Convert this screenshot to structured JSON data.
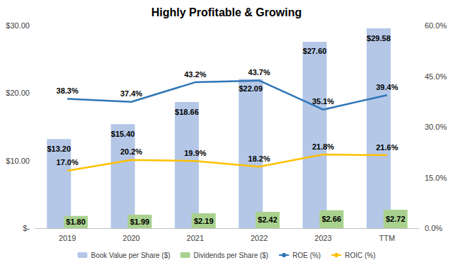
{
  "chart_data": {
    "type": "bar",
    "title": "Highly Profitable & Growing",
    "categories": [
      "2019",
      "2020",
      "2021",
      "2022",
      "2023",
      "TTM"
    ],
    "series": [
      {
        "name": "Book Value per Share ($)",
        "type": "bar",
        "color": "#b4c7e7",
        "values": [
          13.2,
          15.4,
          18.66,
          22.09,
          27.6,
          29.58
        ],
        "value_labels": [
          "$13.20",
          "$15.40",
          "$18.66",
          "$22.09",
          "$27.60",
          "$29.58"
        ]
      },
      {
        "name": "Dividends per Share ($)",
        "type": "bar",
        "color": "#a9d18e",
        "values": [
          1.8,
          1.99,
          2.19,
          2.42,
          2.66,
          2.72
        ],
        "value_labels": [
          "$1.80",
          "$1.99",
          "$2.19",
          "$2.42",
          "$2.66",
          "$2.72"
        ]
      },
      {
        "name": "ROE (%)",
        "type": "line",
        "axis": "y2",
        "color": "#2e75b6",
        "marker": "none",
        "line_style": "solid",
        "values": [
          38.3,
          37.4,
          43.2,
          43.7,
          35.1,
          39.4
        ],
        "value_labels": [
          "38.3%",
          "37.4%",
          "43.2%",
          "43.7%",
          "35.1%",
          "39.4%"
        ]
      },
      {
        "name": "ROIC (%)",
        "type": "line",
        "axis": "y2",
        "color": "#ffc000",
        "marker": "none",
        "line_style": "solid",
        "values": [
          17.0,
          20.2,
          19.9,
          18.2,
          21.8,
          21.6
        ],
        "value_labels": [
          "17.0%",
          "20.2%",
          "19.9%",
          "18.2%",
          "21.8%",
          "21.6%"
        ]
      }
    ],
    "ylim": [
      0,
      30
    ],
    "yticks": [
      {
        "value": 0,
        "label": "$-"
      },
      {
        "value": 10,
        "label": "$10.00"
      },
      {
        "value": 20,
        "label": "$20.00"
      },
      {
        "value": 30,
        "label": "$30.00"
      }
    ],
    "y2lim": [
      0,
      60
    ],
    "y2ticks": [
      {
        "value": 0,
        "label": "0.0%"
      },
      {
        "value": 15,
        "label": "15.0%"
      },
      {
        "value": 30,
        "label": "30.0%"
      },
      {
        "value": 45,
        "label": "45.0%"
      },
      {
        "value": 60,
        "label": "60.0%"
      }
    ],
    "data_labels": true,
    "grid": false,
    "legend": "bottom"
  }
}
